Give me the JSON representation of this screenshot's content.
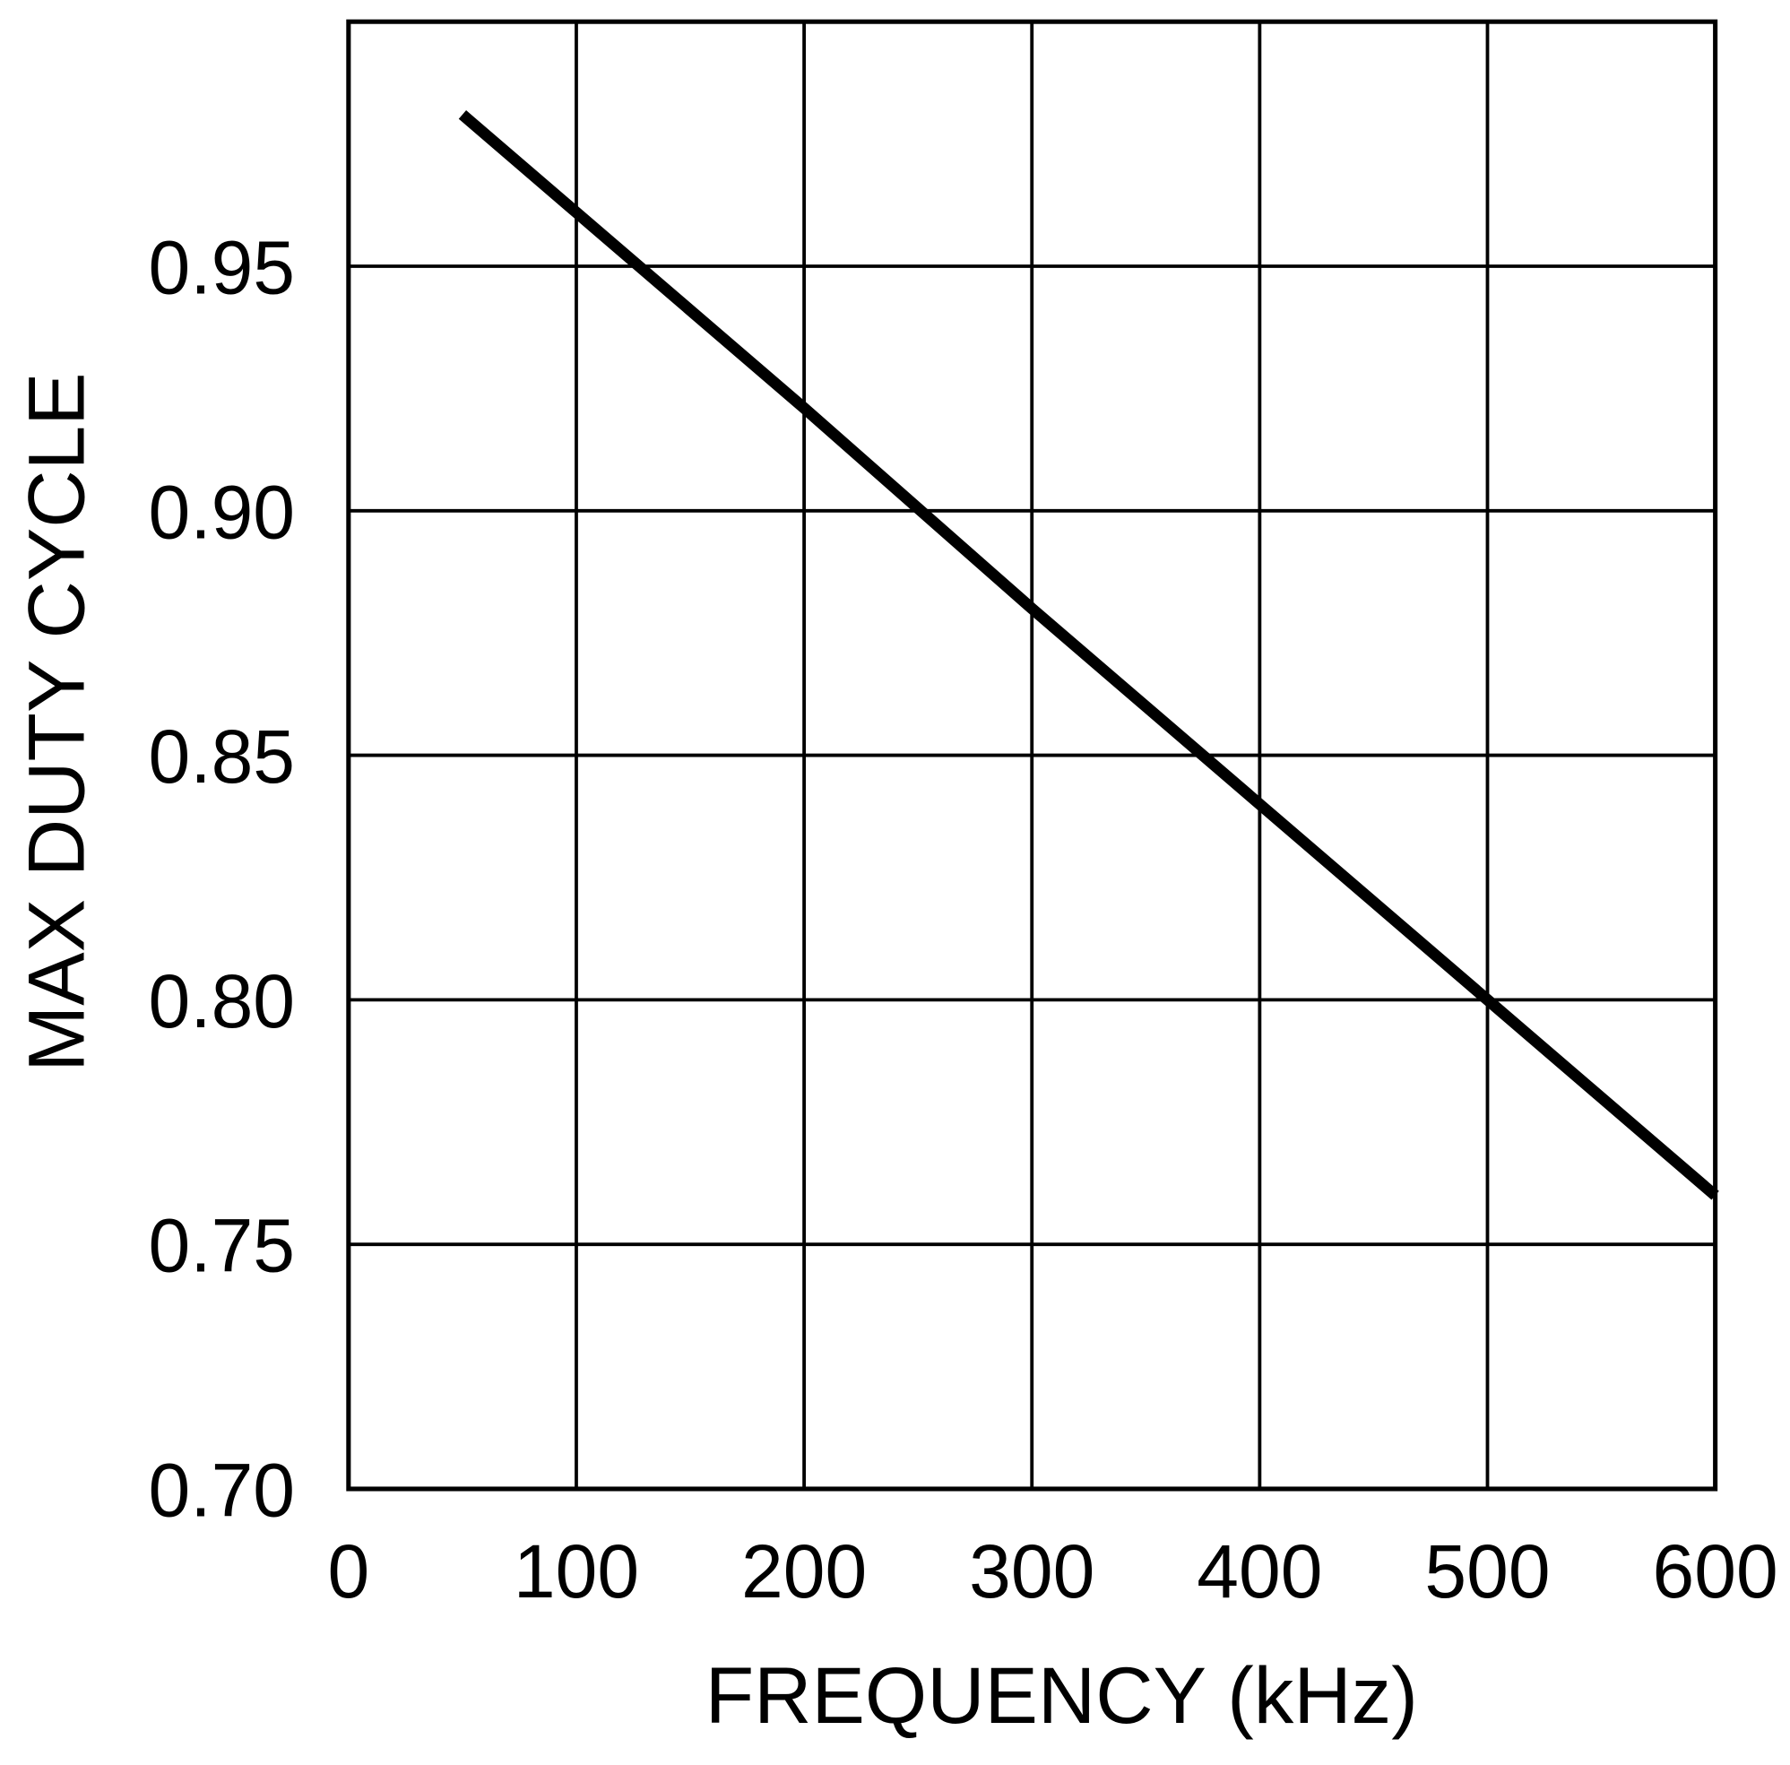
{
  "chart_data": {
    "type": "line",
    "title": "",
    "xlabel": "FREQUENCY (kHz)",
    "ylabel": "MAX DUTY CYCLE",
    "xlim": [
      0,
      600
    ],
    "ylim": [
      0.7,
      1.0
    ],
    "xticks": [
      "0",
      "100",
      "200",
      "300",
      "400",
      "500",
      "600"
    ],
    "yticks": [
      "0.70",
      "0.75",
      "0.80",
      "0.85",
      "0.90",
      "0.95"
    ],
    "grid": true,
    "line_color": "#000000",
    "series": [
      {
        "x": [
          50,
          100,
          200,
          300,
          400,
          500,
          600
        ],
        "y": [
          0.981,
          0.961,
          0.921,
          0.88,
          0.84,
          0.8,
          0.76
        ]
      }
    ]
  }
}
